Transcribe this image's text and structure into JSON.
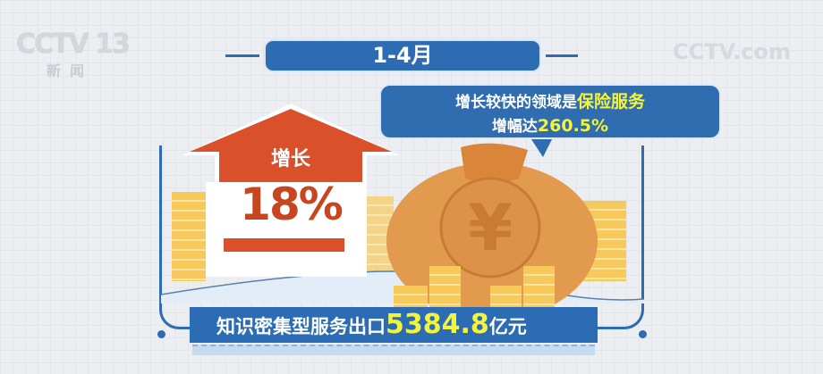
{
  "logo": {
    "channel": "CCTV",
    "number": "13",
    "sub": "新闻"
  },
  "watermark": "CCTV.com",
  "period": "1-4月",
  "callout": {
    "line1_prefix": "增长较快的领域是",
    "line1_highlight": "保险服务",
    "line2_prefix": "增幅达",
    "line2_highlight": "260.5%"
  },
  "arrow": {
    "label": "增长",
    "value": "18%"
  },
  "banner": {
    "prefix": "知识密集型服务出口",
    "value": "5384.8",
    "unit": "亿元"
  },
  "colors": {
    "blue": "#2d6bb3",
    "orange_red": "#d9502a",
    "highlight_yellow": "#f4f43a",
    "bag": "#e29a4e",
    "coin": "#f7c95a"
  }
}
